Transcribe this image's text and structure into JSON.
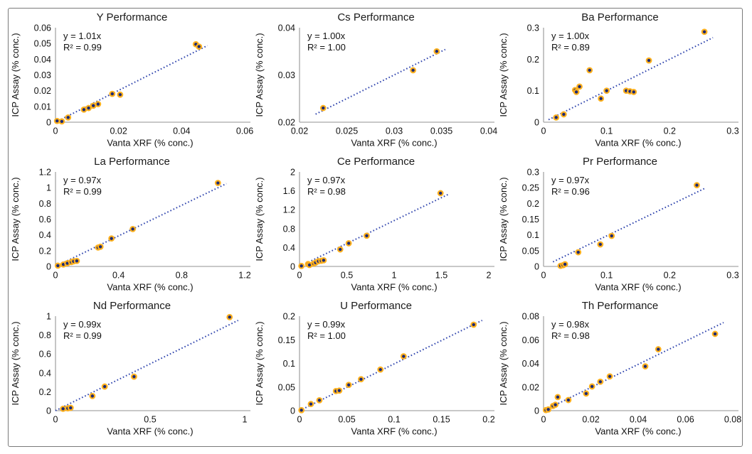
{
  "figure": {
    "xlabel": "Vanta XRF (% conc.)",
    "ylabel": "ICP Assay (% conc.)"
  },
  "style": {
    "marker_fill": "#1c2a75",
    "marker_ring": "#ffb11e",
    "trend_color": "#2f44ad",
    "axis_color": "#a6a6a6",
    "text_color": "#111111",
    "title_color": "#1a1a1a",
    "border_color": "#7a7a7a"
  },
  "chart_data": [
    {
      "type": "scatter",
      "title": "Y Performance",
      "equation": "y = 1.01x",
      "r2_label": "R² = 0.99",
      "slope": 1.01,
      "xlabel": "Vanta XRF (% conc.)",
      "ylabel": "ICP Assay (% conc.)",
      "xlim": [
        0,
        0.06
      ],
      "ylim": [
        0,
        0.06
      ],
      "xticks": [
        "0",
        "0.02",
        "0.04",
        "0.06"
      ],
      "yticks": [
        "0",
        "0.01",
        "0.02",
        "0.03",
        "0.04",
        "0.05",
        "0.06"
      ],
      "points": [
        [
          0.0005,
          0.0008
        ],
        [
          0.002,
          0.0005
        ],
        [
          0.004,
          0.003
        ],
        [
          0.009,
          0.008
        ],
        [
          0.0105,
          0.009
        ],
        [
          0.012,
          0.0105
        ],
        [
          0.0135,
          0.0115
        ],
        [
          0.018,
          0.018
        ],
        [
          0.0205,
          0.0175
        ],
        [
          0.0445,
          0.0495
        ],
        [
          0.0455,
          0.048
        ]
      ]
    },
    {
      "type": "scatter",
      "title": "Cs Performance",
      "equation": "y = 1.00x",
      "r2_label": "R² = 1.00",
      "slope": 1.0,
      "xlabel": "Vanta XRF (% conc.)",
      "ylabel": "ICP Assay (% conc.)",
      "xlim": [
        0.02,
        0.04
      ],
      "ylim": [
        0.02,
        0.04
      ],
      "xticks": [
        "0.02",
        "0.025",
        "0.03",
        "0.035",
        "0.04"
      ],
      "yticks": [
        "0.02",
        "0.03",
        "0.04"
      ],
      "points": [
        [
          0.0225,
          0.023
        ],
        [
          0.032,
          0.031
        ],
        [
          0.0345,
          0.035
        ]
      ]
    },
    {
      "type": "scatter",
      "title": "Ba Performance",
      "equation": "y = 1.00x",
      "r2_label": "R² = 0.89",
      "slope": 1.0,
      "xlabel": "Vanta XRF (% conc.)",
      "ylabel": "ICP Assay (% conc.)",
      "xlim": [
        0,
        0.3
      ],
      "ylim": [
        0,
        0.3
      ],
      "xticks": [
        "0",
        "0.1",
        "0.2",
        "0.3"
      ],
      "yticks": [
        "0",
        "0.1",
        "0.2",
        "0.3"
      ],
      "points": [
        [
          0.02,
          0.015
        ],
        [
          0.032,
          0.025
        ],
        [
          0.05,
          0.102
        ],
        [
          0.052,
          0.096
        ],
        [
          0.057,
          0.113
        ],
        [
          0.073,
          0.165
        ],
        [
          0.091,
          0.075
        ],
        [
          0.1,
          0.1
        ],
        [
          0.131,
          0.1
        ],
        [
          0.137,
          0.098
        ],
        [
          0.143,
          0.096
        ],
        [
          0.167,
          0.196
        ],
        [
          0.255,
          0.287
        ]
      ]
    },
    {
      "type": "scatter",
      "title": "La Performance",
      "equation": "y = 0.97x",
      "r2_label": "R² = 0.99",
      "slope": 0.97,
      "xlabel": "Vanta XRF (% conc.)",
      "ylabel": "ICP Assay (% conc.)",
      "xlim": [
        0,
        1.2
      ],
      "ylim": [
        0,
        1.2
      ],
      "xticks": [
        "0",
        "0.4",
        "0.8",
        "1.2"
      ],
      "yticks": [
        "0",
        "0.2",
        "0.4",
        "0.6",
        "0.8",
        "1",
        "1.2"
      ],
      "points": [
        [
          0.015,
          0.01
        ],
        [
          0.05,
          0.025
        ],
        [
          0.075,
          0.04
        ],
        [
          0.1,
          0.055
        ],
        [
          0.115,
          0.065
        ],
        [
          0.135,
          0.07
        ],
        [
          0.27,
          0.24
        ],
        [
          0.285,
          0.25
        ],
        [
          0.355,
          0.355
        ],
        [
          0.49,
          0.475
        ],
        [
          1.03,
          1.06
        ]
      ]
    },
    {
      "type": "scatter",
      "title": "Ce Performance",
      "equation": "y = 0.97x",
      "r2_label": "R² = 0.98",
      "slope": 0.97,
      "xlabel": "Vanta XRF (% conc.)",
      "ylabel": "ICP Assay (% conc.)",
      "xlim": [
        0,
        2
      ],
      "ylim": [
        0,
        2
      ],
      "xticks": [
        "0",
        "0.5",
        "1",
        "1.5",
        "2"
      ],
      "yticks": [
        "0",
        "0.4",
        "0.8",
        "1.2",
        "1.6",
        "2"
      ],
      "points": [
        [
          0.02,
          0.01
        ],
        [
          0.09,
          0.05
        ],
        [
          0.105,
          0.03
        ],
        [
          0.15,
          0.06
        ],
        [
          0.17,
          0.08
        ],
        [
          0.2,
          0.11
        ],
        [
          0.23,
          0.12
        ],
        [
          0.255,
          0.13
        ],
        [
          0.43,
          0.36
        ],
        [
          0.52,
          0.49
        ],
        [
          0.71,
          0.65
        ],
        [
          1.49,
          1.55
        ]
      ]
    },
    {
      "type": "scatter",
      "title": "Pr Performance",
      "equation": "y = 0.97x",
      "r2_label": "R² = 0.96",
      "slope": 0.97,
      "xlabel": "Vanta XRF (% conc.)",
      "ylabel": "ICP Assay (% conc.)",
      "xlim": [
        0,
        0.3
      ],
      "ylim": [
        0,
        0.3
      ],
      "xticks": [
        "0",
        "0.1",
        "0.2",
        "0.3"
      ],
      "yticks": [
        "0",
        "0.05",
        "0.1",
        "0.15",
        "0.2",
        "0.25",
        "0.3"
      ],
      "points": [
        [
          0.027,
          0.002
        ],
        [
          0.031,
          0.004
        ],
        [
          0.034,
          0.007
        ],
        [
          0.055,
          0.045
        ],
        [
          0.09,
          0.07
        ],
        [
          0.108,
          0.097
        ],
        [
          0.243,
          0.258
        ]
      ]
    },
    {
      "type": "scatter",
      "title": "Nd Performance",
      "equation": "y = 0.99x",
      "r2_label": "R² = 0.99",
      "slope": 0.99,
      "xlabel": "Vanta XRF (% conc.)",
      "ylabel": "ICP Assay (% conc.)",
      "xlim": [
        0,
        1
      ],
      "ylim": [
        0,
        1
      ],
      "xticks": [
        "0",
        "0.5",
        "1"
      ],
      "yticks": [
        "0",
        "0.2",
        "0.4",
        "0.6",
        "0.8",
        "1"
      ],
      "points": [
        [
          0.04,
          0.02
        ],
        [
          0.065,
          0.025
        ],
        [
          0.08,
          0.03
        ],
        [
          0.195,
          0.155
        ],
        [
          0.26,
          0.255
        ],
        [
          0.415,
          0.36
        ],
        [
          0.92,
          0.99
        ]
      ]
    },
    {
      "type": "scatter",
      "title": "U Performance",
      "equation": "y = 0.99x",
      "r2_label": "R² = 1.00",
      "slope": 0.99,
      "xlabel": "Vanta XRF (% conc.)",
      "ylabel": "ICP Assay (% conc.)",
      "xlim": [
        0,
        0.2
      ],
      "ylim": [
        0,
        0.2
      ],
      "xticks": [
        "0",
        "0.05",
        "0.1",
        "0.15",
        "0.2"
      ],
      "yticks": [
        "0",
        "0.05",
        "0.1",
        "0.15",
        "0.2"
      ],
      "points": [
        [
          0.002,
          0.001
        ],
        [
          0.012,
          0.014
        ],
        [
          0.021,
          0.022
        ],
        [
          0.0385,
          0.0415
        ],
        [
          0.042,
          0.0425
        ],
        [
          0.052,
          0.0545
        ],
        [
          0.065,
          0.0665
        ],
        [
          0.0855,
          0.087
        ],
        [
          0.11,
          0.115
        ],
        [
          0.184,
          0.182
        ]
      ]
    },
    {
      "type": "scatter",
      "title": "Th Performance",
      "equation": "y = 0.98x",
      "r2_label": "R² = 0.98",
      "slope": 0.98,
      "xlabel": "Vanta XRF (% conc.)",
      "ylabel": "ICP Assay (% conc.)",
      "xlim": [
        0,
        0.08
      ],
      "ylim": [
        0,
        0.08
      ],
      "xticks": [
        "0",
        "0.02",
        "0.04",
        "0.06",
        "0.08"
      ],
      "yticks": [
        "0",
        "0.02",
        "0.04",
        "0.06",
        "0.08"
      ],
      "points": [
        [
          0.001,
          0.0005
        ],
        [
          0.002,
          0.001
        ],
        [
          0.004,
          0.004
        ],
        [
          0.005,
          0.005
        ],
        [
          0.006,
          0.0115
        ],
        [
          0.0105,
          0.009
        ],
        [
          0.018,
          0.0145
        ],
        [
          0.0205,
          0.0205
        ],
        [
          0.024,
          0.0245
        ],
        [
          0.028,
          0.029
        ],
        [
          0.043,
          0.0375
        ],
        [
          0.0485,
          0.052
        ],
        [
          0.0725,
          0.065
        ]
      ]
    }
  ]
}
